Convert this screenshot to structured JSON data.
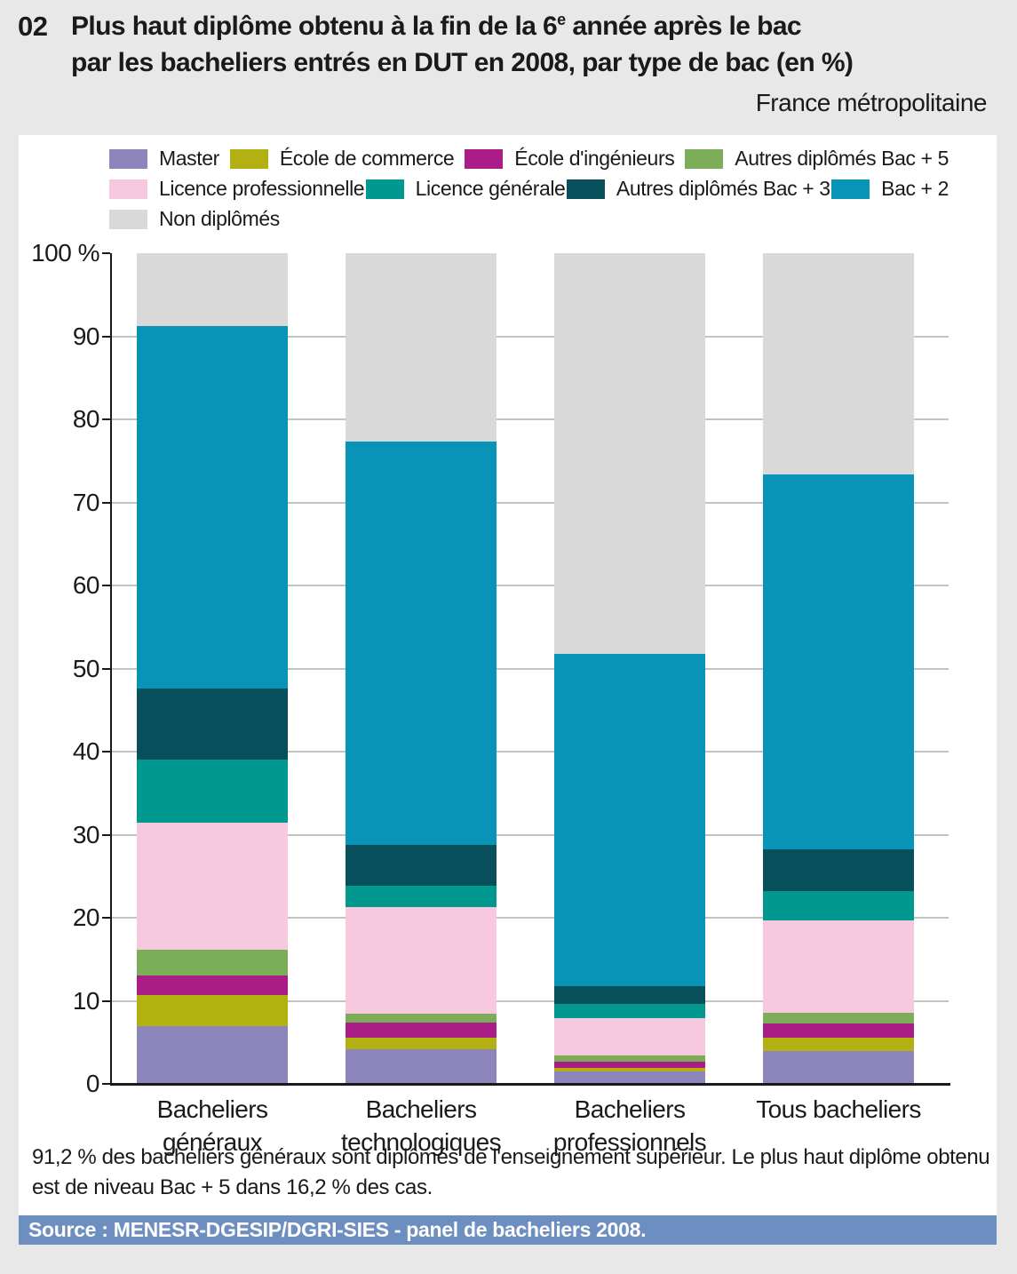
{
  "header": {
    "figure_number": "02",
    "title_prefix": "Plus haut diplôme obtenu à la fin de la 6",
    "title_sup": "e",
    "title_suffix": " année après le bac",
    "title_line2": "par les bacheliers entrés en DUT en 2008, par type de bac (en %)",
    "region_note": "France métropolitaine"
  },
  "chart_data": {
    "type": "bar",
    "stacked": true,
    "unit": "%",
    "title": "Plus haut diplôme obtenu à la fin de la 6e année après le bac par les bacheliers entrés en DUT en 2008, par type de bac (en %)",
    "categories": [
      {
        "label_lines": [
          "Bacheliers",
          "généraux"
        ]
      },
      {
        "label_lines": [
          "Bacheliers",
          "technologiques"
        ]
      },
      {
        "label_lines": [
          "Bacheliers",
          "professionnels"
        ]
      },
      {
        "label_lines": [
          "Tous bacheliers"
        ]
      }
    ],
    "series": [
      {
        "name": "Master",
        "color": "#8c86bd",
        "values": [
          6.9,
          4.2,
          1.5,
          4.0
        ]
      },
      {
        "name": "École de commerce",
        "color": "#b3b012",
        "values": [
          3.8,
          1.4,
          0.4,
          1.6
        ]
      },
      {
        "name": "École d'ingénieurs",
        "color": "#ab1d86",
        "values": [
          2.4,
          1.8,
          0.8,
          1.7
        ]
      },
      {
        "name": "Autres diplômés Bac + 5",
        "color": "#7cad58",
        "values": [
          3.1,
          1.0,
          0.7,
          1.3
        ]
      },
      {
        "name": "Licence professionnelle",
        "color": "#f7c9de",
        "values": [
          15.2,
          12.9,
          4.5,
          11.1
        ]
      },
      {
        "name": "Licence générale",
        "color": "#00988f",
        "values": [
          7.6,
          2.5,
          1.7,
          3.5
        ]
      },
      {
        "name": "Autres diplômés Bac + 3",
        "color": "#07505b",
        "values": [
          8.6,
          5.0,
          2.2,
          5.0
        ]
      },
      {
        "name": "Bac + 2",
        "color": "#0794b6",
        "values": [
          43.6,
          48.5,
          40.0,
          45.2
        ]
      },
      {
        "name": "Non diplômés",
        "color": "#d9d9d9",
        "values": [
          8.8,
          22.7,
          48.2,
          26.6
        ]
      }
    ],
    "ylim": [
      0,
      100
    ],
    "y_ticks": [
      {
        "value": 100,
        "label": "100 %"
      },
      {
        "value": 90,
        "label": "90"
      },
      {
        "value": 80,
        "label": "80"
      },
      {
        "value": 70,
        "label": "70"
      },
      {
        "value": 60,
        "label": "60"
      },
      {
        "value": 50,
        "label": "50"
      },
      {
        "value": 40,
        "label": "40"
      },
      {
        "value": 30,
        "label": "30"
      },
      {
        "value": 20,
        "label": "20"
      },
      {
        "value": 10,
        "label": "10"
      },
      {
        "value": 0,
        "label": "0"
      }
    ],
    "grid": "horizontal gridlines at 10–90",
    "legend_position": "top",
    "legend_rows": [
      [
        0,
        1,
        2,
        3
      ],
      [
        4,
        5,
        6,
        7
      ],
      [
        8
      ]
    ]
  },
  "note": {
    "text": "91,2 % des bacheliers généraux sont diplômés de l'enseignement supérieur. Le plus haut diplôme obtenu est de niveau Bac + 5 dans 16,2 % des cas."
  },
  "source": {
    "text": "Source : MENESR-DGESIP/DGRI-SIES - panel de bacheliers 2008."
  },
  "colors": {
    "page_bg": "#e8e8e8",
    "panel_bg": "#ffffff",
    "source_bar_bg": "#6d8ec1",
    "gridline": "#c3c3c3",
    "axis": "#1a1a1a",
    "text": "#1a1a1a"
  }
}
